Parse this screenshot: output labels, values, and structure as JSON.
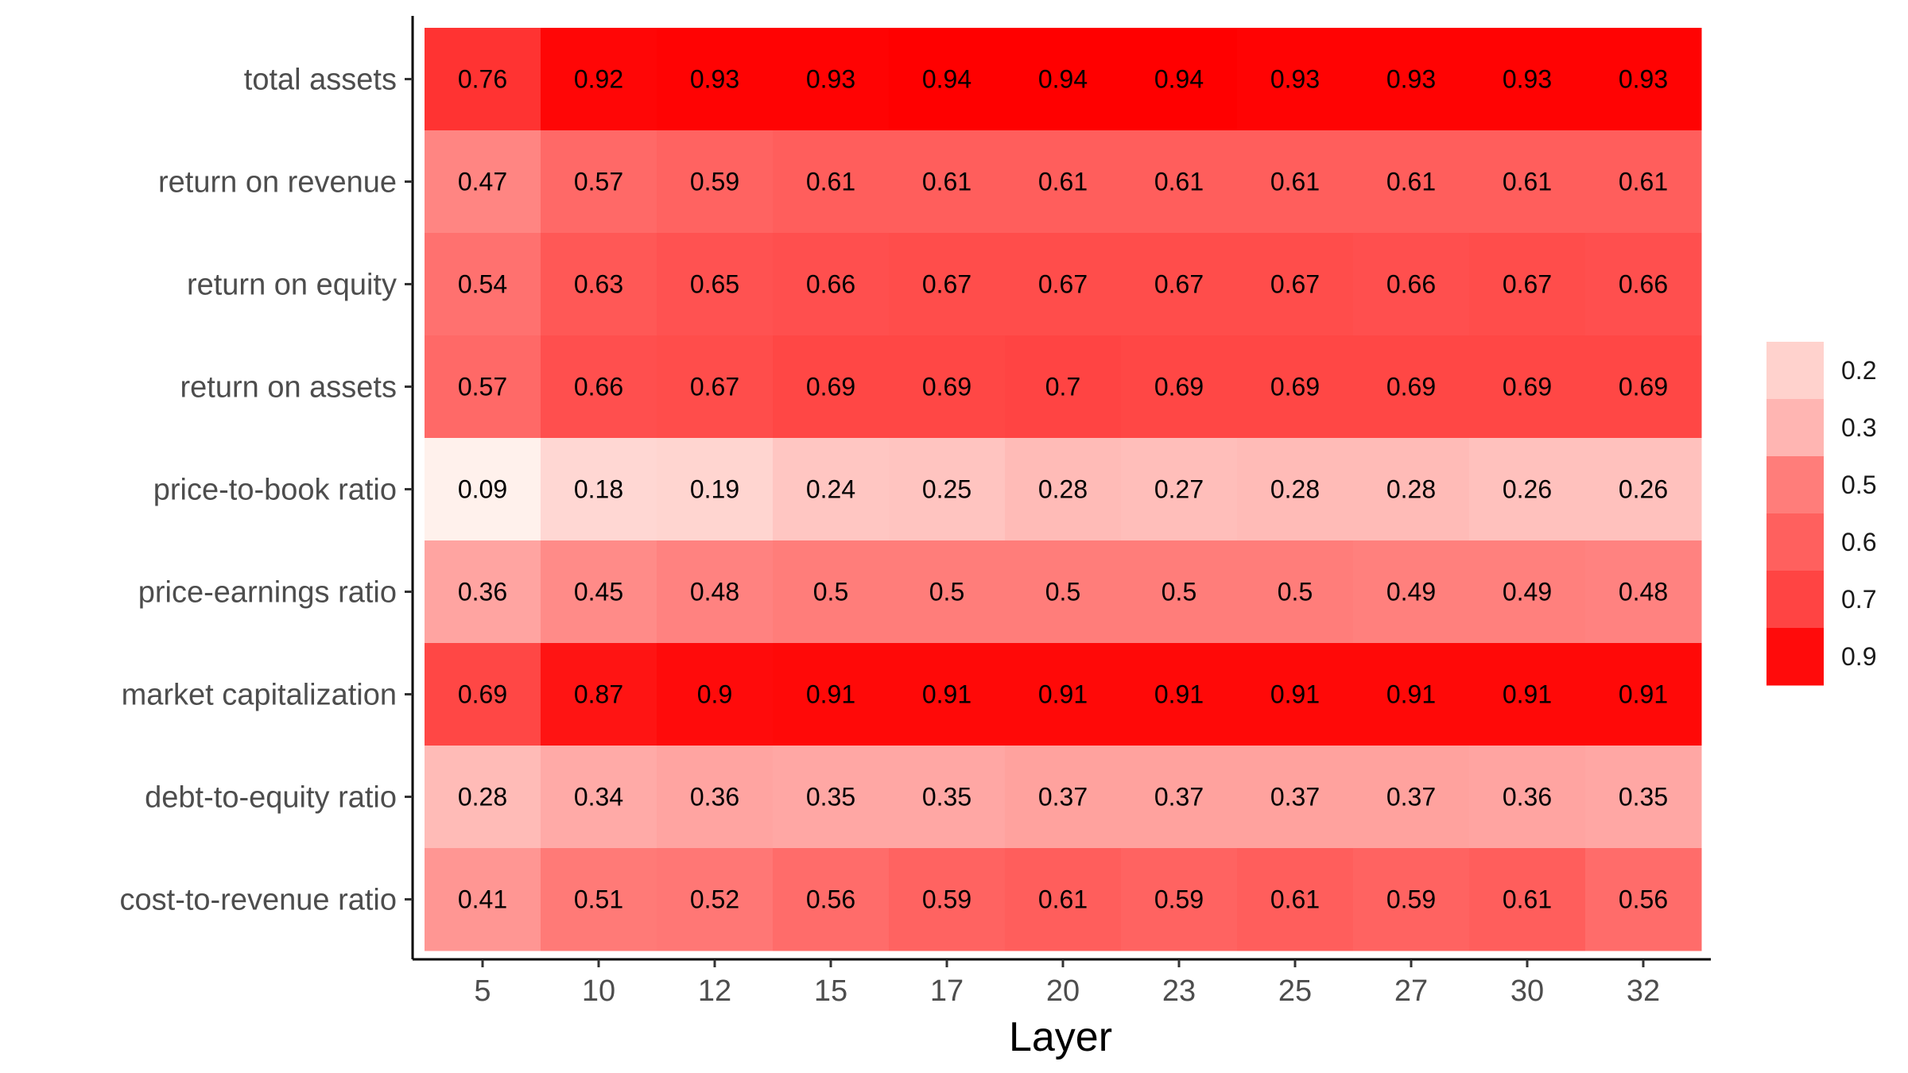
{
  "chart_data": {
    "type": "heatmap",
    "title": "",
    "xlabel": "Layer",
    "ylabel": "",
    "x": [
      "5",
      "10",
      "12",
      "15",
      "17",
      "20",
      "23",
      "25",
      "27",
      "30",
      "32"
    ],
    "y": [
      "total assets",
      "return on revenue",
      "return on equity",
      "return on assets",
      "price-to-book ratio",
      "price-earnings ratio",
      "market capitalization",
      "debt-to-equity ratio",
      "cost-to-revenue ratio"
    ],
    "values": [
      [
        0.76,
        0.92,
        0.93,
        0.93,
        0.94,
        0.94,
        0.94,
        0.93,
        0.93,
        0.93,
        0.93
      ],
      [
        0.47,
        0.57,
        0.59,
        0.61,
        0.61,
        0.61,
        0.61,
        0.61,
        0.61,
        0.61,
        0.61
      ],
      [
        0.54,
        0.63,
        0.65,
        0.66,
        0.67,
        0.67,
        0.67,
        0.67,
        0.66,
        0.67,
        0.66
      ],
      [
        0.57,
        0.66,
        0.67,
        0.69,
        0.69,
        0.7,
        0.69,
        0.69,
        0.69,
        0.69,
        0.69
      ],
      [
        0.09,
        0.18,
        0.19,
        0.24,
        0.25,
        0.28,
        0.27,
        0.28,
        0.28,
        0.26,
        0.26
      ],
      [
        0.36,
        0.45,
        0.48,
        0.5,
        0.5,
        0.5,
        0.5,
        0.5,
        0.49,
        0.49,
        0.48
      ],
      [
        0.69,
        0.87,
        0.9,
        0.91,
        0.91,
        0.91,
        0.91,
        0.91,
        0.91,
        0.91,
        0.91
      ],
      [
        0.28,
        0.34,
        0.36,
        0.35,
        0.35,
        0.37,
        0.37,
        0.37,
        0.37,
        0.36,
        0.35
      ],
      [
        0.41,
        0.51,
        0.52,
        0.56,
        0.59,
        0.61,
        0.59,
        0.61,
        0.59,
        0.61,
        0.56
      ]
    ],
    "color_low": "#fff1ec",
    "color_high": "#ff0000",
    "legend": {
      "placement": "right",
      "labels": [
        "0.2",
        "0.3",
        "0.5",
        "0.6",
        "0.7",
        "0.9"
      ]
    },
    "grid": false
  }
}
